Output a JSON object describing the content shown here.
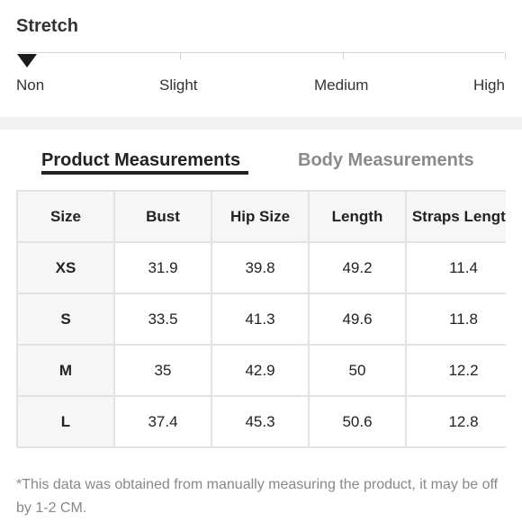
{
  "stretch": {
    "title": "Stretch",
    "levels": [
      "Non",
      "Slight",
      "Medium",
      "High"
    ],
    "selected": "Non"
  },
  "tabs": {
    "active": "Product Measurements",
    "inactive": "Body Measurements"
  },
  "table": {
    "headers": [
      "Size",
      "Bust",
      "Hip Size",
      "Length",
      "Straps Length"
    ],
    "rows": [
      [
        "XS",
        "31.9",
        "39.8",
        "49.2",
        "11.4"
      ],
      [
        "S",
        "33.5",
        "41.3",
        "49.6",
        "11.8"
      ],
      [
        "M",
        "35",
        "42.9",
        "50",
        "12.2"
      ],
      [
        "L",
        "37.4",
        "45.3",
        "50.6",
        "12.8"
      ]
    ]
  },
  "footnote": "*This data was obtained from manually measuring the product, it may be off by 1-2 CM."
}
